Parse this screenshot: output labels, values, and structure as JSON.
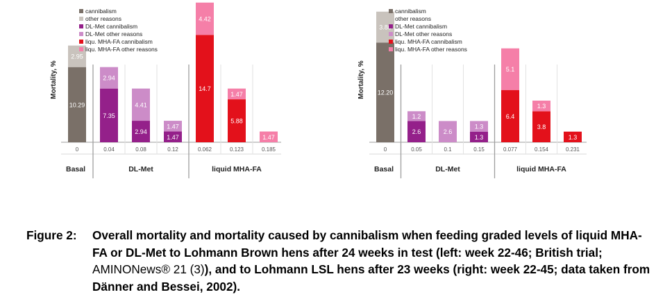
{
  "colors": {
    "cannibalism": "#7a7068",
    "other_reasons": "#c9c3bd",
    "dlmet_cannibalism": "#94208a",
    "dlmet_other": "#cc8cc8",
    "mha_cannibalism": "#e3111b",
    "mha_other": "#f57fa8",
    "axis": "#9e9e9e"
  },
  "legend": [
    {
      "key": "cannibalism",
      "label": "cannibalism"
    },
    {
      "key": "other_reasons",
      "label": "other reasons"
    },
    {
      "key": "dlmet_cannibalism",
      "label": "DL-Met cannibalism"
    },
    {
      "key": "dlmet_other",
      "label": "DL-Met other reasons"
    },
    {
      "key": "mha_cannibalism",
      "label": "liqu. MHA-FA cannibalism"
    },
    {
      "key": "mha_other",
      "label": "liqu. MHA-FA other reasons"
    }
  ],
  "chart_data": [
    {
      "type": "bar",
      "stacked": true,
      "ylabel": "Mortality, %",
      "ylim": [
        0,
        19
      ],
      "categories": [
        "0",
        "0.04",
        "0.08",
        "0.12",
        "0.062",
        "0.123",
        "0.185"
      ],
      "groups": [
        {
          "label": "Basal",
          "start": 0,
          "end": 0
        },
        {
          "label": "DL-Met",
          "start": 1,
          "end": 3
        },
        {
          "label": "liquid  MHA-FA",
          "start": 4,
          "end": 6
        }
      ],
      "bars": [
        {
          "bottom": {
            "value": 10.29,
            "label": "10.29",
            "color": "cannibalism"
          },
          "top": {
            "value": 2.95,
            "label": "2.95",
            "color": "other_reasons"
          }
        },
        {
          "bottom": {
            "value": 7.35,
            "label": "7.35",
            "color": "dlmet_cannibalism"
          },
          "top": {
            "value": 2.94,
            "label": "2.94",
            "color": "dlmet_other"
          }
        },
        {
          "bottom": {
            "value": 2.94,
            "label": "2.94",
            "color": "dlmet_cannibalism"
          },
          "top": {
            "value": 4.41,
            "label": "4.41",
            "color": "dlmet_other"
          }
        },
        {
          "bottom": {
            "value": 1.47,
            "label": "1.47",
            "color": "dlmet_cannibalism"
          },
          "top": {
            "value": 1.47,
            "label": "1.47",
            "color": "dlmet_other"
          }
        },
        {
          "bottom": {
            "value": 14.7,
            "label": "14.7",
            "color": "mha_cannibalism"
          },
          "top": {
            "value": 4.42,
            "label": "4.42",
            "color": "mha_other"
          }
        },
        {
          "bottom": {
            "value": 5.88,
            "label": "5.88",
            "color": "mha_cannibalism"
          },
          "top": {
            "value": 1.47,
            "label": "1.47",
            "color": "mha_other"
          }
        },
        {
          "bottom": {
            "value": 0,
            "label": "",
            "color": "mha_cannibalism"
          },
          "top": {
            "value": 1.47,
            "label": "1.47",
            "color": "mha_other"
          }
        }
      ]
    },
    {
      "type": "bar",
      "stacked": true,
      "ylabel": "Mortality, %",
      "ylim": [
        0,
        17
      ],
      "categories": [
        "0",
        "0.05",
        "0.1",
        "0.15",
        "0.077",
        "0.154",
        "0.231"
      ],
      "groups": [
        {
          "label": "Basal",
          "start": 0,
          "end": 0
        },
        {
          "label": "DL-Met",
          "start": 1,
          "end": 3
        },
        {
          "label": "liquid  MHA-FA",
          "start": 4,
          "end": 6
        }
      ],
      "bars": [
        {
          "bottom": {
            "value": 12.2,
            "label": "12.20",
            "color": "cannibalism"
          },
          "top": {
            "value": 3.8,
            "label": "3.80",
            "color": "other_reasons"
          }
        },
        {
          "bottom": {
            "value": 2.6,
            "label": "2.6",
            "color": "dlmet_cannibalism"
          },
          "top": {
            "value": 1.2,
            "label": "1.2",
            "color": "dlmet_other"
          }
        },
        {
          "bottom": {
            "value": 0,
            "label": "",
            "color": "dlmet_cannibalism"
          },
          "top": {
            "value": 2.6,
            "label": "2.6",
            "color": "dlmet_other"
          }
        },
        {
          "bottom": {
            "value": 1.3,
            "label": "1.3",
            "color": "dlmet_cannibalism"
          },
          "top": {
            "value": 1.3,
            "label": "1.3",
            "color": "dlmet_other"
          }
        },
        {
          "bottom": {
            "value": 6.4,
            "label": "6.4",
            "color": "mha_cannibalism"
          },
          "top": {
            "value": 5.1,
            "label": "5.1",
            "color": "mha_other"
          }
        },
        {
          "bottom": {
            "value": 3.8,
            "label": "3.8",
            "color": "mha_cannibalism"
          },
          "top": {
            "value": 1.3,
            "label": "1.3",
            "color": "mha_other"
          }
        },
        {
          "bottom": {
            "value": 1.3,
            "label": "1.3",
            "color": "mha_cannibalism"
          },
          "top": {
            "value": 0,
            "label": "",
            "color": "mha_other"
          }
        }
      ]
    }
  ],
  "caption": {
    "label": "Figure 2:",
    "text_part1": "Overall mortality and mortality caused by cannibalism when feeding graded levels of liquid MHA-FA or DL-Met to Lohmann Brown hens after 24 weeks in test (left: week 22-46; British trial; ",
    "text_normal": "AMINONews® 21 (3)",
    "text_part2": "), and to Lohmann LSL hens after 23 weeks (right: week 22-45; data taken from Dänner and Bessei, 2002)."
  }
}
